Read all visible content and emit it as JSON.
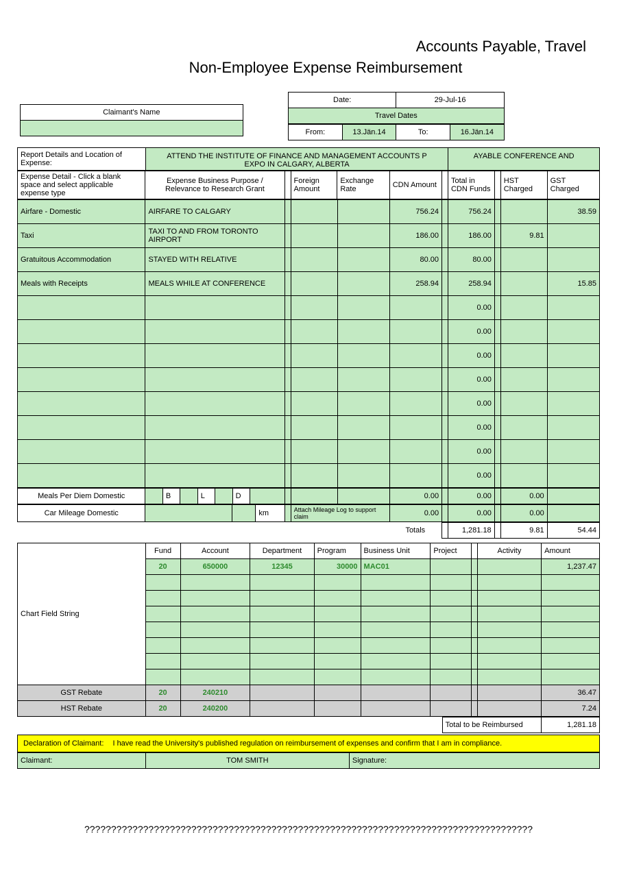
{
  "title1": "Accounts Payable, Travel",
  "title2": "Non-Employee Expense Reimbursement",
  "claimant_name_label": "Claimant's Name",
  "date_label": "Date:",
  "date_value": "29-Jul-16",
  "travel_dates_label": "Travel Dates",
  "from_label": "From:",
  "from_value": "13.Jän.14",
  "to_label": "To:",
  "to_value": "16.Jän.14",
  "report_details_label": "Report Details and Location of Expense:",
  "report_details_value": "ATTEND THE INSTITUTE OF FINANCE AND MANAGEMENT ACCOUNTS P",
  "report_details_value2": "AYABLE CONFERENCE AND",
  "report_details_value3": "EXPO IN CALGARY, ALBERTA",
  "hdr_expense_detail": "Expense Detail - Click a blank space and select applicable expense type",
  "hdr_purpose": "Expense Business Purpose / Relevance to Research Grant",
  "hdr_foreign": "Foreign Amount",
  "hdr_exrate": "Exchange Rate",
  "hdr_cdn": "CDN Amount",
  "hdr_totalcdn": "Total in CDN Funds",
  "hdr_hst": "HST Charged",
  "hdr_gst": "GST Charged",
  "rows": [
    {
      "type": "Airfare - Domestic",
      "purpose": "AIRFARE TO CALGARY",
      "cdn": "756.24",
      "total": "756.24",
      "hst": "",
      "gst": "38.59"
    },
    {
      "type": "Taxi",
      "purpose": "TAXI TO AND FROM TORONTO AIRPORT",
      "cdn": "186.00",
      "total": "186.00",
      "hst": "9.81",
      "gst": ""
    },
    {
      "type": "Gratuitous Accommodation",
      "purpose": "STAYED WITH RELATIVE",
      "cdn": "80.00",
      "total": "80.00",
      "hst": "",
      "gst": ""
    },
    {
      "type": "Meals with Receipts",
      "purpose": " MEALS WHILE AT CONFERENCE",
      "cdn": "258.94",
      "total": "258.94",
      "hst": "",
      "gst": "15.85"
    }
  ],
  "meals_pd": "Meals Per Diem Domestic",
  "bld_b": "B",
  "bld_l": "L",
  "bld_d": "D",
  "car_mileage": "Car Mileage Domestic",
  "km": "km",
  "mileage_note": "Attach Mileage Log to support claim",
  "totals_label": "Totals",
  "totals_cdn": "1,281.18",
  "totals_hst": "9.81",
  "totals_gst": "54.44",
  "cf_label": "Chart Field String",
  "cf_hdr_fund": "Fund",
  "cf_hdr_account": "Account",
  "cf_hdr_dept": "Department",
  "cf_hdr_prog": "Program",
  "cf_hdr_bu": "Business Unit",
  "cf_hdr_proj": "Project",
  "cf_hdr_act": "Activity",
  "cf_hdr_amt": "Amount",
  "cf_fund": "20",
  "cf_account": "650000",
  "cf_dept": "12345",
  "cf_prog": "30000",
  "cf_bu": "MAC01",
  "cf_amt": "1,237.47",
  "gst_rebate": "GST Rebate",
  "gst_fund": "20",
  "gst_acct": "240210",
  "gst_amt": "36.47",
  "hst_rebate": "HST Rebate",
  "hst_fund": "20",
  "hst_acct": "240200",
  "hst_amt": "7.24",
  "total_reimburse_label": "Total to be Reimbursed",
  "total_reimburse": "1,281.18",
  "declaration_label": "Declaration of Claimant:",
  "declaration_text1": "I have read the University's published regulation on reimbursement of expenses and confirm that I am",
  "declaration_text2": "in compliance.",
  "claimant_label": "Claimant:",
  "claimant_value": "TOM SMITH",
  "signature_label": "Signature:",
  "footer": "????????????????????????????????????????????????????????????????????????????????????"
}
